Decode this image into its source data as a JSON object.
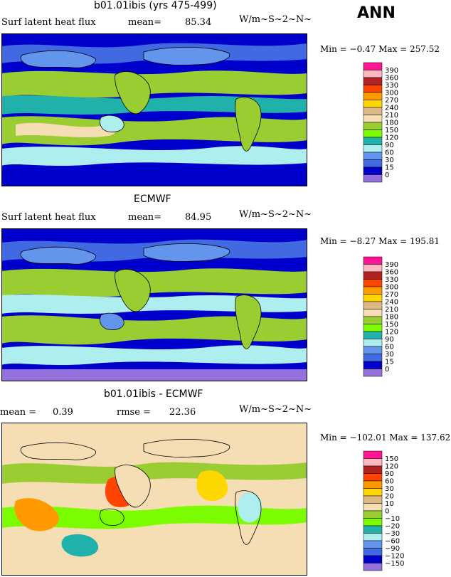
{
  "header": {
    "season": "ANN"
  },
  "panels": [
    {
      "title": "b01.01ibis (yrs 475-499)",
      "variable": "Surf latent heat flux",
      "mean_label": "mean=",
      "mean_value": "85.34",
      "rmse_label": "",
      "rmse_value": "",
      "units": "W/m~S~2~N~",
      "min_max": "Min =  −0.47 Max = 257.52"
    },
    {
      "title": "ECMWF",
      "variable": "Surf latent heat flux",
      "mean_label": "mean=",
      "mean_value": "84.95",
      "rmse_label": "",
      "rmse_value": "",
      "units": "W/m~S~2~N~",
      "min_max": "Min =  −8.27 Max = 195.81"
    },
    {
      "title": "b01.01ibis - ECMWF",
      "variable": "",
      "mean_label": "mean =",
      "mean_value": "0.39",
      "rmse_label": "rmse =",
      "rmse_value": "22.36",
      "units": "W/m~S~2~N~",
      "min_max": "Min = −102.01 Max = 137.62"
    }
  ],
  "chart_data": [
    {
      "type": "heatmap",
      "title": "b01.01ibis (yrs 475-499)",
      "subtitle": "Surf latent heat flux",
      "units": "W/m~S~2~N~",
      "mean": 85.34,
      "min": -0.47,
      "max": 257.52,
      "colorbar": {
        "levels": [
          390,
          360,
          330,
          300,
          270,
          240,
          210,
          180,
          150,
          120,
          90,
          60,
          30,
          15,
          0
        ],
        "colors": [
          "#ff1493",
          "#ffb6c1",
          "#b22222",
          "#ff4500",
          "#ff9900",
          "#ffd700",
          "#deb887",
          "#f5deb3",
          "#9acd32",
          "#7cfc00",
          "#20b2aa",
          "#afeeee",
          "#6495ed",
          "#4169e1",
          "#0000cd",
          "#9370db"
        ]
      }
    },
    {
      "type": "heatmap",
      "title": "ECMWF",
      "subtitle": "Surf latent heat flux",
      "units": "W/m~S~2~N~",
      "mean": 84.95,
      "min": -8.27,
      "max": 195.81,
      "colorbar": {
        "levels": [
          390,
          360,
          330,
          300,
          270,
          240,
          210,
          180,
          150,
          120,
          90,
          60,
          30,
          15,
          0
        ],
        "colors": [
          "#ff1493",
          "#ffb6c1",
          "#b22222",
          "#ff4500",
          "#ff9900",
          "#ffd700",
          "#deb887",
          "#f5deb3",
          "#9acd32",
          "#7cfc00",
          "#20b2aa",
          "#afeeee",
          "#6495ed",
          "#4169e1",
          "#0000cd",
          "#9370db"
        ]
      }
    },
    {
      "type": "heatmap",
      "title": "b01.01ibis - ECMWF",
      "units": "W/m~S~2~N~",
      "mean": 0.39,
      "rmse": 22.36,
      "min": -102.01,
      "max": 137.62,
      "colorbar": {
        "levels": [
          150,
          120,
          90,
          60,
          30,
          20,
          10,
          0,
          -10,
          -20,
          -30,
          -60,
          -90,
          -120,
          -150
        ],
        "colors": [
          "#ff1493",
          "#ffb6c1",
          "#b22222",
          "#ff4500",
          "#ff9900",
          "#ffd700",
          "#deb887",
          "#f5deb3",
          "#9acd32",
          "#7cfc00",
          "#20b2aa",
          "#afeeee",
          "#6495ed",
          "#4169e1",
          "#0000cd",
          "#9370db"
        ]
      }
    }
  ]
}
